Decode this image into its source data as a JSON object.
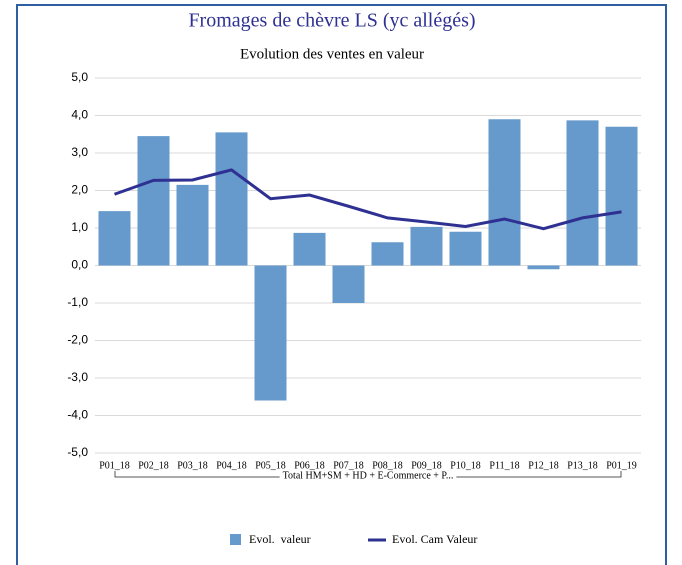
{
  "chart_data": {
    "type": "bar_line",
    "title": "Fromages de chèvre LS (yc allégés)",
    "subtitle": "Evolution des ventes en valeur",
    "categories": [
      "P01_18",
      "P02_18",
      "P03_18",
      "P04_18",
      "P05_18",
      "P06_18",
      "P07_18",
      "P08_18",
      "P09_18",
      "P10_18",
      "P11_18",
      "P12_18",
      "P13_18",
      "P01_19"
    ],
    "x_group_label": "Total HM+SM + HD + E-Commerce + P...",
    "series": [
      {
        "name": "Evol.  valeur",
        "type": "bar",
        "color": "#6699cc",
        "values": [
          1.45,
          3.45,
          2.15,
          3.55,
          -3.6,
          0.87,
          -1.0,
          0.62,
          1.03,
          0.9,
          3.9,
          -0.1,
          3.87,
          3.7
        ]
      },
      {
        "name": "Evol. Cam Valeur",
        "type": "line",
        "color": "#2e3192",
        "values": [
          1.9,
          2.27,
          2.28,
          2.55,
          1.78,
          1.88,
          1.58,
          1.27,
          1.16,
          1.04,
          1.24,
          0.98,
          1.27,
          1.43
        ]
      }
    ],
    "ylim": [
      -5,
      5
    ],
    "yticks": [
      {
        "value": -5,
        "label": "-5,0"
      },
      {
        "value": -4,
        "label": "-4,0"
      },
      {
        "value": -3,
        "label": "-3,0"
      },
      {
        "value": -2,
        "label": "-2,0"
      },
      {
        "value": -1,
        "label": "-1,0"
      },
      {
        "value": 0,
        "label": "0,0"
      },
      {
        "value": 1,
        "label": "1,0"
      },
      {
        "value": 2,
        "label": "2,0"
      },
      {
        "value": 3,
        "label": "3,0"
      },
      {
        "value": 4,
        "label": "4,0"
      },
      {
        "value": 5,
        "label": "5,0"
      }
    ],
    "grid": true,
    "legend": "bottom"
  }
}
